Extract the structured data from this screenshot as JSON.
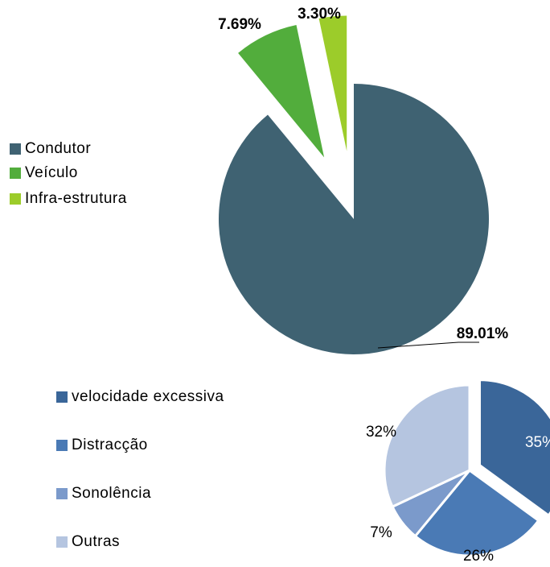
{
  "chart_data": [
    {
      "type": "pie",
      "legend": "left",
      "categories": [
        "Condutor",
        "Veículo",
        "Infra-estrutura"
      ],
      "values": [
        89.01,
        7.69,
        3.3
      ],
      "value_labels": [
        "89.01%",
        "7.69%",
        "3.30%"
      ],
      "colors": [
        "#3f6272",
        "#52ad3c",
        "#9ccc2a"
      ]
    },
    {
      "type": "pie",
      "legend": "left",
      "categories": [
        "velocidade excessiva",
        "Distracção",
        "Sonolência",
        "Outras"
      ],
      "values": [
        35,
        26,
        7,
        32
      ],
      "value_labels": [
        "35%",
        "26%",
        "7%",
        "32%"
      ],
      "colors": [
        "#3a6699",
        "#4a7ab5",
        "#7b9acb",
        "#b5c5e0"
      ]
    }
  ]
}
